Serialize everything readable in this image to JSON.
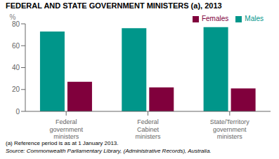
{
  "chart_data": {
    "type": "bar",
    "title": "FEDERAL AND STATE GOVERNMENT MINISTERS (a), 2013",
    "categories": [
      "Federal\ngovernment\nministers",
      "Federal\nCabinet\nministers",
      "State/Territory\ngovernment\nministers"
    ],
    "series": [
      {
        "name": "Males",
        "color": "#00968A",
        "values": [
          73,
          76,
          77
        ]
      },
      {
        "name": "Females",
        "color": "#80003C",
        "values": [
          27,
          22,
          21
        ]
      }
    ],
    "ylabel": "%",
    "ylim": [
      0,
      80
    ],
    "yticks": [
      0,
      20,
      40,
      60,
      80
    ],
    "grid": false,
    "legend": "upper right",
    "annotations": [
      "(a) Reference period is as at 1 January 2013.",
      "Source: Commonwealth Parliamentary Library, (Administrative Records), Australia."
    ]
  }
}
